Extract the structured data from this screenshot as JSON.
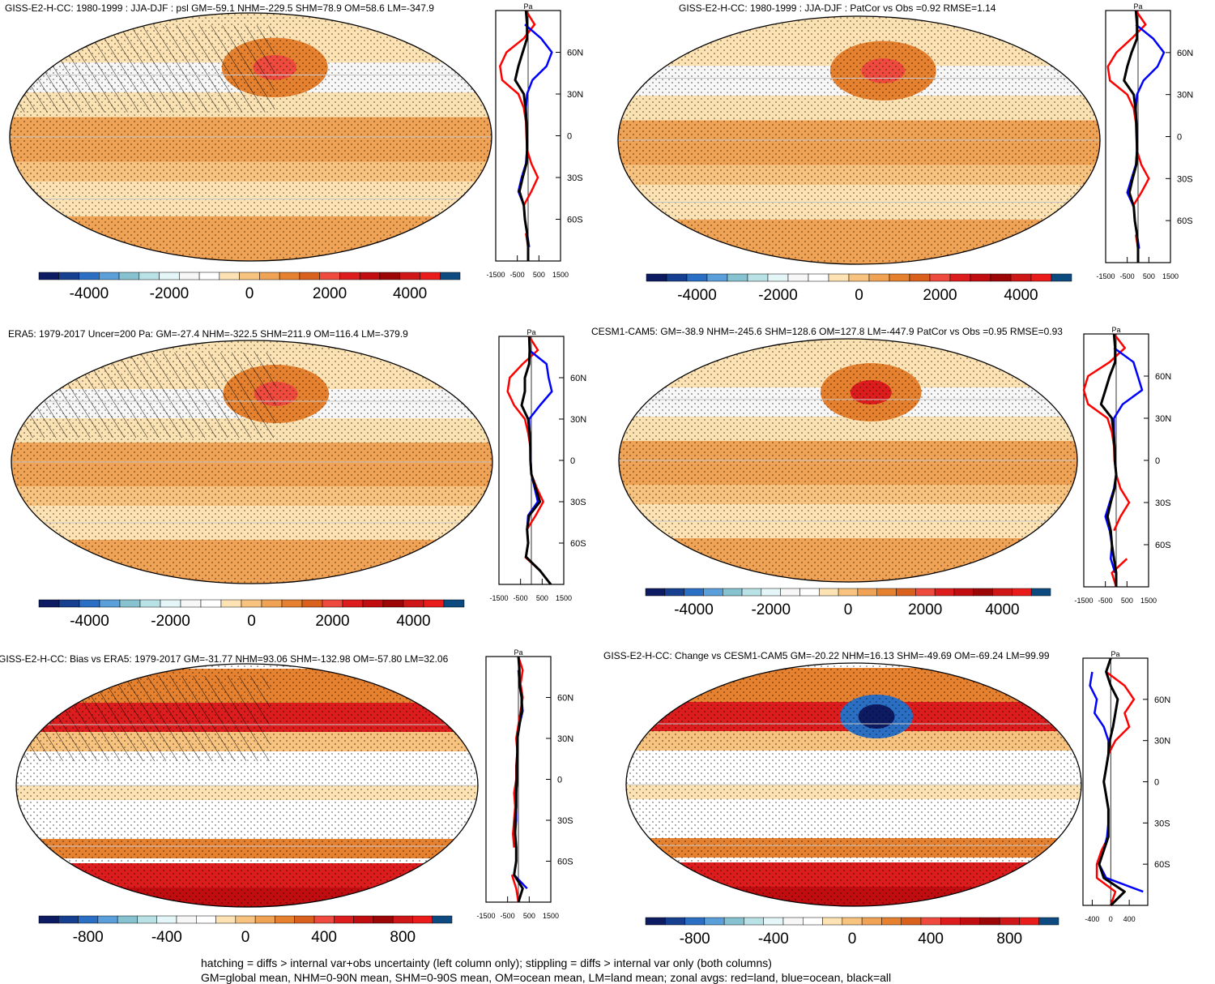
{
  "footer": {
    "line1": "hatching = diffs > internal var+obs uncertainty (left column only); stippling = diffs > internal var only (both columns)",
    "line2": "GM=global mean, NHM=0-90N mean, SHM=0-90S mean, OM=ocean mean, LM=land mean; zonal avgs: red=land, blue=ocean, black=all"
  },
  "colorbar_palette": [
    "#0d1b63",
    "#173f8f",
    "#2a6fc4",
    "#5a9fda",
    "#86c2d0",
    "#b9e2e6",
    "#e4f6f8",
    "#f7f7f7",
    "#ffffff",
    "#fde3b4",
    "#f8c37f",
    "#f0a255",
    "#e6812f",
    "#d9611d",
    "#ee4a3e",
    "#dd1d1d",
    "#c10c10",
    "#9c0606",
    "#cf1717",
    "#ea1b1b",
    "#0c4a80"
  ],
  "legend_colors": {
    "land": "#ff0000",
    "ocean": "#0000ff",
    "all": "#000000"
  },
  "chart_data": [
    {
      "type": "map",
      "panel": "top-left",
      "title": "GISS-E2-H-CC: 1980-1999 : JJA-DJF : psl GM=-59.1 NHM=-229.5 SHM=78.9 OM=58.6 LM=-347.9",
      "stats": {
        "GM": -59.1,
        "NHM": -229.5,
        "SHM": 78.9,
        "OM": 58.6,
        "LM": -347.9
      },
      "hatching": true,
      "stippling": true,
      "colorbar": {
        "ticks": [
          "-4000",
          "-2000",
          "0",
          "2000",
          "4000"
        ],
        "range": [
          -5250,
          5250
        ]
      },
      "zonal_profile": {
        "unit": "Pa",
        "xticks": [
          "-1500",
          "-500",
          "500",
          "1500"
        ],
        "xlim": [
          -1500,
          1500
        ],
        "yticks": [
          "60N",
          "30N",
          "0",
          "30S",
          "60S"
        ],
        "lat": [
          90,
          80,
          70,
          60,
          50,
          40,
          30,
          20,
          10,
          0,
          -10,
          -20,
          -30,
          -40,
          -50,
          -60,
          -70,
          -80,
          -90
        ],
        "land": [
          -100,
          300,
          -200,
          -1000,
          -1300,
          -1200,
          -450,
          -200,
          -100,
          -80,
          -50,
          150,
          450,
          150,
          -200,
          null,
          -100,
          0,
          0
        ],
        "ocean": [
          null,
          -150,
          600,
          1100,
          850,
          200,
          -50,
          -100,
          -80,
          -50,
          -50,
          -100,
          -300,
          -450,
          -200,
          -150,
          -50,
          50,
          null
        ],
        "all": [
          -100,
          -50,
          -50,
          -250,
          -450,
          -600,
          -200,
          -120,
          -80,
          -60,
          -50,
          -80,
          -250,
          -400,
          -200,
          -150,
          -50,
          0,
          0
        ]
      }
    },
    {
      "type": "map",
      "panel": "top-right",
      "title": "GISS-E2-H-CC: 1980-1999 : JJA-DJF : PatCor vs Obs =0.92 RMSE=1.14",
      "stats": {
        "PatCor": 0.92,
        "RMSE": 1.14
      },
      "hatching": false,
      "stippling": true,
      "colorbar": {
        "ticks": [
          "-4000",
          "-2000",
          "0",
          "2000",
          "4000"
        ],
        "range": [
          -5250,
          5250
        ]
      },
      "zonal_profile": {
        "unit": "Pa",
        "xticks": [
          "-1500",
          "-500",
          "500",
          "1500"
        ],
        "xlim": [
          -1500,
          1500
        ],
        "yticks": [
          "60N",
          "30N",
          "0",
          "30S",
          "60S"
        ],
        "lat": [
          90,
          80,
          70,
          60,
          50,
          40,
          30,
          20,
          10,
          0,
          -10,
          -20,
          -30,
          -40,
          -50,
          -60,
          -70,
          -80,
          -90
        ],
        "land": [
          -100,
          350,
          -300,
          -1000,
          -1400,
          -1300,
          -500,
          -200,
          -100,
          -80,
          -50,
          150,
          500,
          150,
          -250,
          null,
          -100,
          0,
          0
        ],
        "ocean": [
          null,
          -100,
          700,
          1200,
          900,
          250,
          -50,
          -100,
          -80,
          -50,
          -50,
          -100,
          -300,
          -500,
          -200,
          -150,
          -50,
          50,
          null
        ],
        "all": [
          -100,
          -50,
          -50,
          -300,
          -500,
          -650,
          -200,
          -120,
          -80,
          -60,
          -50,
          -80,
          -250,
          -400,
          -200,
          -150,
          -50,
          0,
          0
        ]
      }
    },
    {
      "type": "map",
      "panel": "middle-left",
      "title": "ERA5: 1979-2017 Uncer=200 Pa: GM=-27.4 NHM=-322.5 SHM=211.9 OM=116.4 LM=-379.9",
      "stats": {
        "GM": -27.4,
        "NHM": -322.5,
        "SHM": 211.9,
        "OM": 116.4,
        "LM": -379.9,
        "Uncer": 200
      },
      "hatching": true,
      "stippling": true,
      "colorbar": {
        "ticks": [
          "-4000",
          "-2000",
          "0",
          "2000",
          "4000"
        ],
        "range": [
          -5250,
          5250
        ]
      },
      "zonal_profile": {
        "unit": "Pa",
        "xticks": [
          "-1500",
          "-500",
          "500",
          "1500"
        ],
        "xlim": [
          -1500,
          1500
        ],
        "yticks": [
          "60N",
          "30N",
          "0",
          "30S",
          "60S"
        ],
        "lat": [
          90,
          80,
          70,
          60,
          50,
          40,
          30,
          20,
          10,
          0,
          -10,
          -20,
          -30,
          -40,
          -50,
          -60,
          -70,
          -80,
          -90
        ],
        "land": [
          -100,
          300,
          -400,
          -1000,
          -1100,
          -800,
          -300,
          -150,
          -50,
          -50,
          0,
          250,
          550,
          200,
          -200,
          null,
          -300,
          400,
          900
        ],
        "ocean": [
          null,
          -100,
          700,
          800,
          950,
          400,
          -100,
          -80,
          -50,
          -30,
          0,
          150,
          300,
          -150,
          -200,
          -150,
          -250,
          400,
          null
        ],
        "all": [
          -100,
          -80,
          -100,
          -300,
          -300,
          -450,
          -150,
          -80,
          -50,
          -40,
          0,
          200,
          400,
          -100,
          -200,
          -150,
          -250,
          400,
          900
        ]
      }
    },
    {
      "type": "map",
      "panel": "middle-right",
      "title": "CESM1-CAM5: GM=-38.9 NHM=-245.6 SHM=128.6 OM=127.8 LM=-447.9 PatCor vs Obs =0.95 RMSE=0.93",
      "stats": {
        "GM": -38.9,
        "NHM": -245.6,
        "SHM": 128.6,
        "OM": 127.8,
        "LM": -447.9,
        "PatCor": 0.95,
        "RMSE": 0.93
      },
      "hatching": false,
      "stippling": true,
      "colorbar": {
        "ticks": [
          "-4000",
          "-2000",
          "0",
          "2000",
          "4000"
        ],
        "range": [
          -5250,
          5250
        ]
      },
      "zonal_profile": {
        "unit": "Pa",
        "xticks": [
          "-1500",
          "-500",
          "500",
          "1500"
        ],
        "xlim": [
          -1500,
          1500
        ],
        "yticks": [
          "60N",
          "30N",
          "0",
          "30S",
          "60S"
        ],
        "lat": [
          90,
          80,
          70,
          60,
          50,
          40,
          30,
          20,
          10,
          0,
          -10,
          -20,
          -30,
          -40,
          -50,
          -60,
          -70,
          -80,
          -90
        ],
        "land": [
          -100,
          400,
          -300,
          -1300,
          -1500,
          -1300,
          -400,
          -200,
          -100,
          -80,
          0,
          200,
          600,
          200,
          -100,
          null,
          500,
          -200,
          0
        ],
        "ocean": [
          null,
          -100,
          800,
          1000,
          1200,
          300,
          -100,
          -100,
          -80,
          -50,
          0,
          -100,
          -300,
          -500,
          -300,
          -200,
          -250,
          -50,
          null
        ],
        "all": [
          -100,
          -50,
          -50,
          -300,
          -500,
          -700,
          -200,
          -120,
          -80,
          -60,
          0,
          -80,
          -250,
          -400,
          -250,
          -200,
          -100,
          0,
          0
        ]
      }
    },
    {
      "type": "map",
      "panel": "bottom-left",
      "title": "GISS-E2-H-CC: Bias vs ERA5: 1979-2017 GM=-31.77 NHM=93.06 SHM=-132.98 OM=-57.80 LM=32.06",
      "stats": {
        "GM": -31.77,
        "NHM": 93.06,
        "SHM": -132.98,
        "OM": -57.8,
        "LM": 32.06
      },
      "hatching": true,
      "stippling": true,
      "colorbar": {
        "ticks": [
          "-800",
          "-400",
          "0",
          "400",
          "800"
        ],
        "range": [
          -1050,
          1050
        ]
      },
      "zonal_profile": {
        "unit": "Pa",
        "xticks": [
          "-1500",
          "-500",
          "500",
          "1500"
        ],
        "xlim": [
          -1500,
          1500
        ],
        "yticks": [
          "60N",
          "30N",
          "0",
          "30S",
          "60S"
        ],
        "lat": [
          90,
          80,
          70,
          60,
          50,
          40,
          30,
          20,
          10,
          0,
          -10,
          -20,
          -30,
          -40,
          -50,
          -60,
          -70,
          -80,
          -90
        ],
        "land": [
          0,
          200,
          100,
          200,
          100,
          0,
          -100,
          -50,
          -100,
          -100,
          -200,
          -150,
          -200,
          -250,
          -200,
          null,
          -300,
          -100,
          0
        ],
        "ocean": [
          null,
          0,
          50,
          150,
          200,
          50,
          -50,
          -50,
          -50,
          -50,
          -100,
          -100,
          -100,
          -150,
          -100,
          -100,
          -200,
          400,
          null
        ],
        "all": [
          0,
          50,
          50,
          150,
          150,
          50,
          -50,
          -50,
          -80,
          -80,
          -100,
          -100,
          -150,
          -150,
          -100,
          -100,
          -200,
          200,
          0
        ]
      }
    },
    {
      "type": "map",
      "panel": "bottom-right",
      "title": "GISS-E2-H-CC: Change vs CESM1-CAM5 GM=-20.22 NHM=16.13 SHM=-49.69 OM=-69.24 LM=99.99",
      "stats": {
        "GM": -20.22,
        "NHM": 16.13,
        "SHM": -49.69,
        "OM": -69.24,
        "LM": 99.99
      },
      "hatching": false,
      "stippling": true,
      "colorbar": {
        "ticks": [
          "-800",
          "-400",
          "0",
          "400",
          "800"
        ],
        "range": [
          -1050,
          1050
        ]
      },
      "zonal_profile": {
        "unit": "Pa",
        "xticks": [
          "-400",
          "0",
          "400"
        ],
        "xlim": [
          -600,
          800
        ],
        "yticks": [
          "60N",
          "30N",
          "0",
          "30S",
          "60S"
        ],
        "lat": [
          90,
          80,
          70,
          60,
          50,
          40,
          30,
          20,
          10,
          0,
          -10,
          -20,
          -30,
          -40,
          -50,
          -60,
          -70,
          -80,
          -90
        ],
        "land": [
          0,
          -100,
          300,
          500,
          300,
          400,
          100,
          -50,
          -100,
          -150,
          -100,
          -50,
          -50,
          -50,
          -200,
          -300,
          -300,
          100,
          0
        ],
        "ocean": [
          null,
          -400,
          -450,
          -300,
          -350,
          -150,
          -50,
          -50,
          -100,
          -150,
          -100,
          -50,
          -50,
          -80,
          -150,
          -250,
          -100,
          700,
          null
        ],
        "all": [
          0,
          -100,
          0,
          150,
          100,
          50,
          -20,
          -50,
          -100,
          -150,
          -100,
          -50,
          -50,
          -50,
          -150,
          -250,
          -150,
          300,
          0
        ]
      }
    }
  ]
}
